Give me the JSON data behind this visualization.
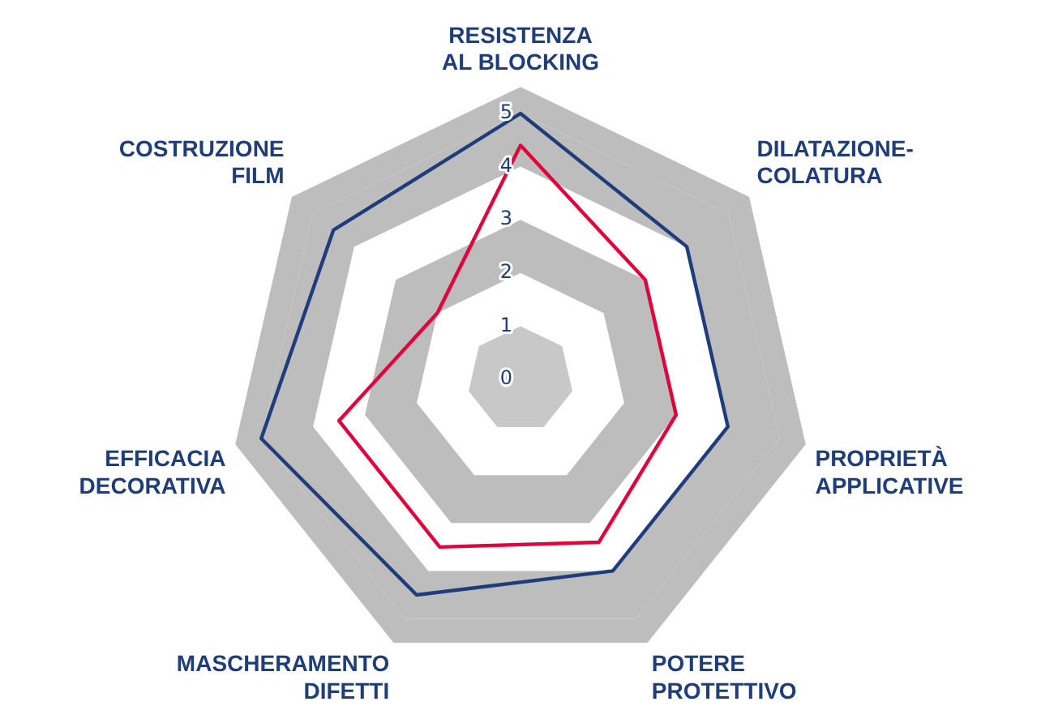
{
  "chart_data": {
    "type": "radar",
    "categories": [
      "RESISTENZA\nAL BLOCKING",
      "DILATAZIONE-\nCOLATURA",
      "PROPRIETÀ\nAPPLICATIVE",
      "POTERE\nPROTETTIVO",
      "MASCHERAMENTO\nDIFETTI",
      "EFFICACIA\nDECORATIVA",
      "COSTRUZIONE\nFILM"
    ],
    "series": [
      {
        "color": "#1f3d7a",
        "values": [
          5,
          4,
          4,
          4,
          4.5,
          5,
          4.5
        ]
      },
      {
        "color": "#e4003a",
        "values": [
          4.4,
          3,
          3,
          3.4,
          3.5,
          3.5,
          2
        ]
      }
    ],
    "ylim": [
      0,
      5.5
    ],
    "yticks": [
      0,
      1,
      2,
      3,
      4,
      5
    ],
    "grid": true,
    "marker": "none",
    "legend": false
  }
}
